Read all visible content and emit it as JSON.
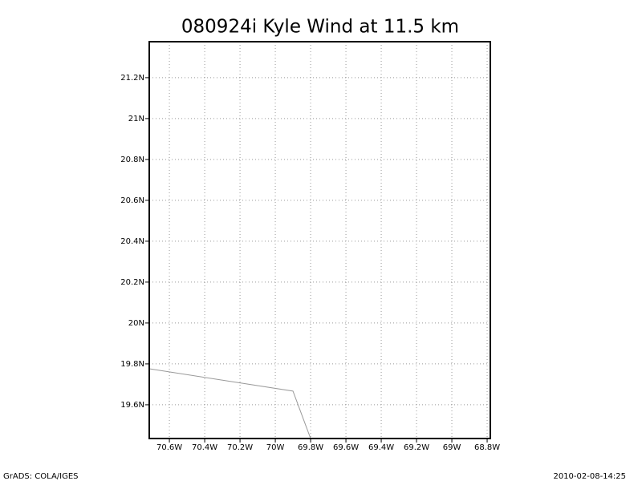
{
  "chart_data": {
    "type": "line",
    "title": "080924i Kyle Wind at 11.5 km",
    "x": [
      -70.714,
      -69.9,
      -69.8
    ],
    "series": [
      {
        "color": "#999999",
        "values": [
          19.776,
          19.667,
          19.435
        ]
      }
    ],
    "xlim": [
      -70.714,
      -68.782
    ],
    "xticks": [
      {
        "value": -70.6,
        "label": "70.6W"
      },
      {
        "value": -70.4,
        "label": "70.4W"
      },
      {
        "value": -70.2,
        "label": "70.2W"
      },
      {
        "value": -70,
        "label": "70W"
      },
      {
        "value": -69.8,
        "label": "69.8W"
      },
      {
        "value": -69.6,
        "label": "69.6W"
      },
      {
        "value": -69.4,
        "label": "69.4W"
      },
      {
        "value": -69.2,
        "label": "69.2W"
      },
      {
        "value": -69,
        "label": "69W"
      },
      {
        "value": -68.8,
        "label": "68.8W"
      }
    ],
    "ylim": [
      19.435,
      21.376
    ],
    "yticks": [
      {
        "value": 19.6,
        "label": "19.6N"
      },
      {
        "value": 19.8,
        "label": "19.8N"
      },
      {
        "value": 20,
        "label": "20N"
      },
      {
        "value": 20.2,
        "label": "20.2N"
      },
      {
        "value": 20.4,
        "label": "20.4N"
      },
      {
        "value": 20.6,
        "label": "20.6N"
      },
      {
        "value": 20.8,
        "label": "20.8N"
      },
      {
        "value": 21,
        "label": "21N"
      },
      {
        "value": 21.2,
        "label": "21.2N"
      }
    ],
    "grid": true
  },
  "footer": {
    "left": "GrADS: COLA/IGES",
    "right": "2010-02-08-14:25"
  }
}
